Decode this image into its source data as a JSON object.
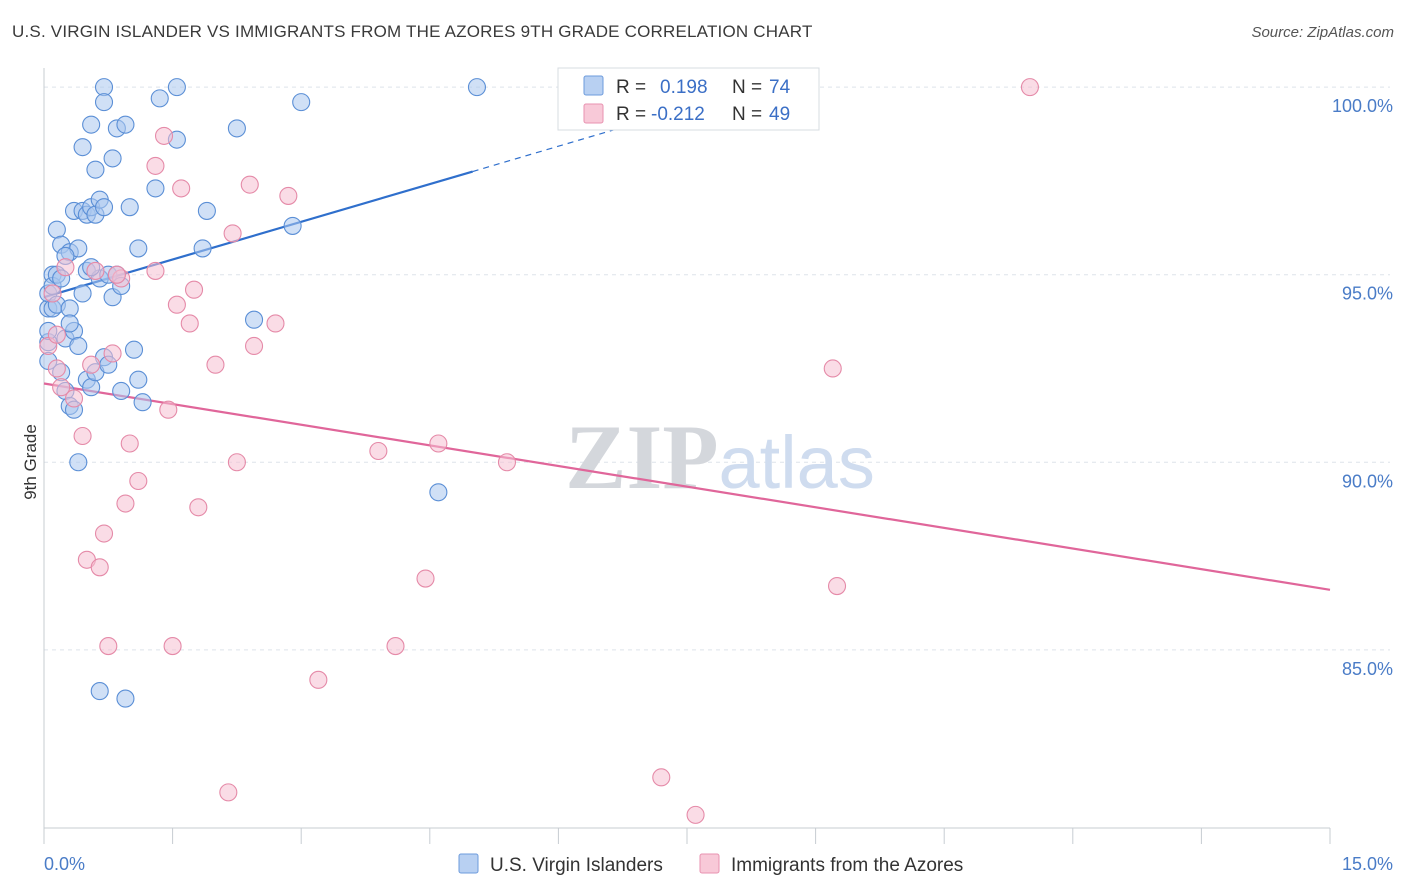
{
  "header": {
    "title": "U.S. VIRGIN ISLANDER VS IMMIGRANTS FROM THE AZORES 9TH GRADE CORRELATION CHART",
    "source": "Source: ZipAtlas.com"
  },
  "watermark": "ZIPatlas",
  "colors": {
    "blue_fill": "#a9c6ef",
    "blue_stroke": "#5b8fd6",
    "blue_line": "#2f6fcc",
    "pink_fill": "#f6c0d2",
    "pink_stroke": "#e58aa8",
    "pink_line": "#e0669a",
    "grid": "#dde3ea",
    "axis_text": "#4a7cc7"
  },
  "chart_data": {
    "type": "scatter",
    "title": "U.S. VIRGIN ISLANDER VS IMMIGRANTS FROM THE AZORES 9TH GRADE CORRELATION CHART",
    "xlabel": "",
    "ylabel": "9th Grade",
    "xlim": [
      0,
      15
    ],
    "ylim": [
      80.25,
      100.35
    ],
    "x_tick_labels": [
      "0.0%",
      "15.0%"
    ],
    "y_ticks": [
      {
        "value": 100,
        "label": "100.0%"
      },
      {
        "value": 95,
        "label": "95.0%"
      },
      {
        "value": 90,
        "label": "90.0%"
      },
      {
        "value": 85,
        "label": "85.0%"
      }
    ],
    "legend": [
      {
        "r_label": "R =",
        "r_value": "0.198",
        "n_label": "N =",
        "n_value": "74"
      },
      {
        "r_label": "R =",
        "r_value": "-0.212",
        "n_label": "N =",
        "n_value": "49"
      }
    ],
    "series": [
      {
        "name": "U.S. Virgin Islanders",
        "trend": {
          "x0": 0.0,
          "y0": 94.4,
          "x1": 5.0,
          "y1": 97.75,
          "dash_x1": 7.0,
          "dash_y1": 99.1
        },
        "points": [
          [
            0.05,
            94.1
          ],
          [
            0.05,
            93.2
          ],
          [
            0.05,
            92.7
          ],
          [
            0.05,
            93.5
          ],
          [
            0.05,
            94.5
          ],
          [
            0.1,
            95.0
          ],
          [
            0.1,
            94.7
          ],
          [
            0.1,
            94.1
          ],
          [
            0.15,
            96.2
          ],
          [
            0.15,
            95.0
          ],
          [
            0.15,
            94.2
          ],
          [
            0.2,
            95.8
          ],
          [
            0.2,
            94.9
          ],
          [
            0.2,
            92.4
          ],
          [
            0.25,
            93.3
          ],
          [
            0.25,
            91.9
          ],
          [
            0.3,
            95.6
          ],
          [
            0.3,
            94.1
          ],
          [
            0.3,
            91.5
          ],
          [
            0.35,
            96.7
          ],
          [
            0.35,
            93.5
          ],
          [
            0.35,
            91.4
          ],
          [
            0.4,
            95.7
          ],
          [
            0.4,
            93.1
          ],
          [
            0.4,
            90.0
          ],
          [
            0.45,
            98.4
          ],
          [
            0.45,
            96.7
          ],
          [
            0.5,
            96.6
          ],
          [
            0.5,
            95.1
          ],
          [
            0.5,
            92.2
          ],
          [
            0.55,
            99.0
          ],
          [
            0.55,
            96.8
          ],
          [
            0.55,
            92.0
          ],
          [
            0.6,
            97.8
          ],
          [
            0.6,
            96.6
          ],
          [
            0.6,
            92.4
          ],
          [
            0.65,
            97.0
          ],
          [
            0.65,
            94.9
          ],
          [
            0.65,
            83.9
          ],
          [
            0.7,
            100.0
          ],
          [
            0.7,
            99.6
          ],
          [
            0.7,
            96.8
          ],
          [
            0.7,
            92.8
          ],
          [
            0.75,
            95.0
          ],
          [
            0.8,
            98.1
          ],
          [
            0.8,
            94.4
          ],
          [
            0.85,
            98.9
          ],
          [
            0.85,
            95.0
          ],
          [
            0.9,
            94.7
          ],
          [
            0.95,
            99.0
          ],
          [
            0.95,
            83.7
          ],
          [
            1.0,
            96.8
          ],
          [
            1.05,
            93.0
          ],
          [
            1.1,
            95.7
          ],
          [
            1.1,
            92.2
          ],
          [
            1.15,
            91.6
          ],
          [
            1.3,
            97.3
          ],
          [
            1.35,
            99.7
          ],
          [
            1.55,
            100.0
          ],
          [
            1.55,
            98.6
          ],
          [
            1.85,
            95.7
          ],
          [
            1.9,
            96.7
          ],
          [
            2.25,
            98.9
          ],
          [
            2.45,
            93.8
          ],
          [
            2.9,
            96.3
          ],
          [
            3.0,
            99.6
          ],
          [
            4.6,
            89.2
          ],
          [
            5.05,
            100.0
          ],
          [
            0.25,
            95.5
          ],
          [
            0.45,
            94.5
          ],
          [
            0.3,
            93.7
          ],
          [
            0.75,
            92.6
          ],
          [
            0.55,
            95.2
          ],
          [
            0.9,
            91.9
          ]
        ]
      },
      {
        "name": "Immigrants from the Azores",
        "trend": {
          "x0": 0.0,
          "y0": 92.1,
          "x1": 15.0,
          "y1": 86.6
        },
        "points": [
          [
            0.05,
            93.1
          ],
          [
            0.1,
            94.5
          ],
          [
            0.15,
            92.5
          ],
          [
            0.2,
            92.0
          ],
          [
            0.25,
            95.2
          ],
          [
            0.35,
            91.7
          ],
          [
            0.45,
            90.7
          ],
          [
            0.5,
            87.4
          ],
          [
            0.55,
            92.6
          ],
          [
            0.6,
            95.1
          ],
          [
            0.65,
            87.2
          ],
          [
            0.7,
            88.1
          ],
          [
            0.75,
            85.1
          ],
          [
            0.8,
            92.9
          ],
          [
            0.9,
            94.9
          ],
          [
            0.95,
            88.9
          ],
          [
            1.0,
            90.5
          ],
          [
            1.1,
            89.5
          ],
          [
            1.3,
            97.9
          ],
          [
            1.3,
            95.1
          ],
          [
            1.4,
            98.7
          ],
          [
            1.45,
            91.4
          ],
          [
            1.5,
            85.1
          ],
          [
            1.55,
            94.2
          ],
          [
            1.6,
            97.3
          ],
          [
            1.7,
            93.7
          ],
          [
            1.75,
            94.6
          ],
          [
            1.8,
            88.8
          ],
          [
            2.0,
            92.6
          ],
          [
            2.2,
            96.1
          ],
          [
            2.15,
            81.2
          ],
          [
            2.25,
            90.0
          ],
          [
            2.4,
            97.4
          ],
          [
            2.45,
            93.1
          ],
          [
            2.7,
            93.7
          ],
          [
            2.85,
            97.1
          ],
          [
            3.2,
            84.2
          ],
          [
            3.9,
            90.3
          ],
          [
            4.1,
            85.1
          ],
          [
            4.45,
            86.9
          ],
          [
            4.6,
            90.5
          ],
          [
            5.4,
            90.0
          ],
          [
            7.2,
            81.6
          ],
          [
            7.6,
            80.6
          ],
          [
            9.2,
            92.5
          ],
          [
            9.25,
            86.7
          ],
          [
            11.5,
            100.0
          ],
          [
            0.15,
            93.4
          ],
          [
            0.85,
            95.0
          ]
        ]
      }
    ]
  }
}
